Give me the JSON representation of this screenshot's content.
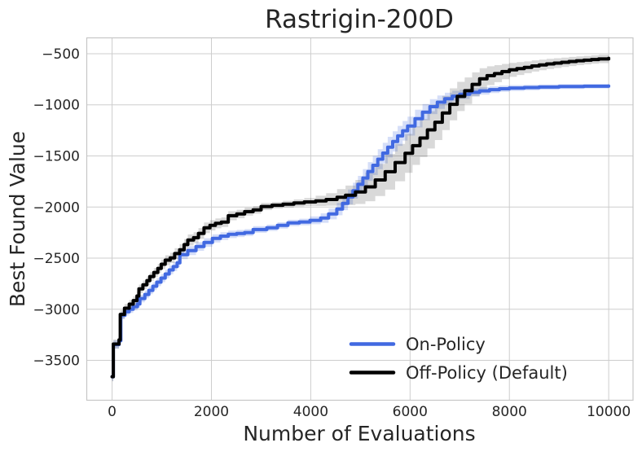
{
  "chart_data": {
    "type": "line",
    "title": "Rastrigin-200D",
    "xlabel": "Number of Evaluations",
    "ylabel": "Best Found Value",
    "xlim": [
      -510,
      10490
    ],
    "ylim": [
      -3890,
      -345
    ],
    "grid": true,
    "legend_position": "lower right",
    "xticks": {
      "values": [
        0,
        2000,
        4000,
        6000,
        8000,
        10000
      ],
      "labels": [
        "0",
        "2000",
        "4000",
        "6000",
        "8000",
        "10000"
      ]
    },
    "yticks": {
      "values": [
        -500,
        -1000,
        -1500,
        -2000,
        -2500,
        -3000,
        -3500
      ],
      "labels": [
        "−500",
        "−1000",
        "−1500",
        "−2000",
        "−2500",
        "−3000",
        "−3500"
      ]
    },
    "series": [
      {
        "name": "On-Policy",
        "color": "#4169e1",
        "band_opacity": 0.22,
        "points": [
          [
            0,
            -3660
          ],
          [
            25,
            -3345
          ],
          [
            140,
            -3308
          ],
          [
            175,
            -3060
          ],
          [
            260,
            -3025
          ],
          [
            345,
            -3000
          ],
          [
            425,
            -2975
          ],
          [
            510,
            -2948
          ],
          [
            560,
            -2895
          ],
          [
            660,
            -2855
          ],
          [
            740,
            -2815
          ],
          [
            820,
            -2775
          ],
          [
            900,
            -2735
          ],
          [
            985,
            -2695
          ],
          [
            1070,
            -2655
          ],
          [
            1150,
            -2615
          ],
          [
            1230,
            -2583
          ],
          [
            1310,
            -2545
          ],
          [
            1365,
            -2466
          ],
          [
            1525,
            -2426
          ],
          [
            1690,
            -2386
          ],
          [
            1850,
            -2347
          ],
          [
            2020,
            -2307
          ],
          [
            2180,
            -2285
          ],
          [
            2340,
            -2267
          ],
          [
            2510,
            -2259
          ],
          [
            2670,
            -2250
          ],
          [
            2840,
            -2220
          ],
          [
            3115,
            -2203
          ],
          [
            3330,
            -2180
          ],
          [
            3540,
            -2156
          ],
          [
            3770,
            -2146
          ],
          [
            3985,
            -2130
          ],
          [
            4200,
            -2108
          ],
          [
            4360,
            -2068
          ],
          [
            4525,
            -2020
          ],
          [
            4640,
            -1964
          ],
          [
            4750,
            -1902
          ],
          [
            4850,
            -1840
          ],
          [
            4950,
            -1778
          ],
          [
            5050,
            -1716
          ],
          [
            5150,
            -1652
          ],
          [
            5250,
            -1592
          ],
          [
            5350,
            -1532
          ],
          [
            5450,
            -1472
          ],
          [
            5550,
            -1414
          ],
          [
            5650,
            -1358
          ],
          [
            5750,
            -1304
          ],
          [
            5850,
            -1254
          ],
          [
            5950,
            -1208
          ],
          [
            6100,
            -1135
          ],
          [
            6250,
            -1072
          ],
          [
            6400,
            -1018
          ],
          [
            6550,
            -974
          ],
          [
            6700,
            -940
          ],
          [
            6850,
            -915
          ],
          [
            7000,
            -897
          ],
          [
            7200,
            -878
          ],
          [
            7400,
            -864
          ],
          [
            7600,
            -852
          ],
          [
            7800,
            -843
          ],
          [
            8000,
            -836
          ],
          [
            8300,
            -831
          ],
          [
            8600,
            -826
          ],
          [
            9000,
            -821
          ],
          [
            9500,
            -818
          ],
          [
            10000,
            -816
          ]
        ],
        "band": [
          [
            0,
            40
          ],
          [
            300,
            35
          ],
          [
            800,
            38
          ],
          [
            1400,
            45
          ],
          [
            2000,
            40
          ],
          [
            2600,
            34
          ],
          [
            3200,
            30
          ],
          [
            3800,
            32
          ],
          [
            4300,
            50
          ],
          [
            4700,
            70
          ],
          [
            5100,
            90
          ],
          [
            5500,
            102
          ],
          [
            5900,
            95
          ],
          [
            6300,
            78
          ],
          [
            6700,
            58
          ],
          [
            7100,
            42
          ],
          [
            7500,
            34
          ],
          [
            7900,
            30
          ],
          [
            8300,
            27
          ],
          [
            8700,
            25
          ],
          [
            9100,
            23
          ],
          [
            9500,
            22
          ],
          [
            10000,
            21
          ]
        ]
      },
      {
        "name": "Off-Policy (Default)",
        "color": "#000000",
        "band_opacity": 0.15,
        "points": [
          [
            0,
            -3660
          ],
          [
            25,
            -3340
          ],
          [
            140,
            -3300
          ],
          [
            165,
            -3050
          ],
          [
            250,
            -2990
          ],
          [
            345,
            -2950
          ],
          [
            425,
            -2915
          ],
          [
            500,
            -2870
          ],
          [
            540,
            -2800
          ],
          [
            620,
            -2760
          ],
          [
            700,
            -2720
          ],
          [
            760,
            -2680
          ],
          [
            840,
            -2640
          ],
          [
            920,
            -2600
          ],
          [
            990,
            -2560
          ],
          [
            1070,
            -2520
          ],
          [
            1170,
            -2498
          ],
          [
            1260,
            -2455
          ],
          [
            1360,
            -2418
          ],
          [
            1450,
            -2368
          ],
          [
            1525,
            -2322
          ],
          [
            1640,
            -2300
          ],
          [
            1740,
            -2258
          ],
          [
            1850,
            -2203
          ],
          [
            1970,
            -2179
          ],
          [
            2080,
            -2160
          ],
          [
            2200,
            -2148
          ],
          [
            2340,
            -2085
          ],
          [
            2510,
            -2068
          ],
          [
            2670,
            -2045
          ],
          [
            2840,
            -2028
          ],
          [
            3000,
            -1995
          ],
          [
            3220,
            -1982
          ],
          [
            3440,
            -1972
          ],
          [
            3660,
            -1960
          ],
          [
            3870,
            -1950
          ],
          [
            4100,
            -1940
          ],
          [
            4310,
            -1926
          ],
          [
            4530,
            -1905
          ],
          [
            4700,
            -1885
          ],
          [
            4900,
            -1853
          ],
          [
            5100,
            -1803
          ],
          [
            5300,
            -1735
          ],
          [
            5500,
            -1655
          ],
          [
            5700,
            -1565
          ],
          [
            5900,
            -1475
          ],
          [
            6050,
            -1400
          ],
          [
            6200,
            -1325
          ],
          [
            6350,
            -1245
          ],
          [
            6500,
            -1170
          ],
          [
            6650,
            -1080
          ],
          [
            6800,
            -995
          ],
          [
            6950,
            -918
          ],
          [
            7100,
            -862
          ],
          [
            7250,
            -800
          ],
          [
            7400,
            -745
          ],
          [
            7550,
            -715
          ],
          [
            7700,
            -695
          ],
          [
            7850,
            -675
          ],
          [
            8000,
            -658
          ],
          [
            8150,
            -645
          ],
          [
            8300,
            -633
          ],
          [
            8450,
            -620
          ],
          [
            8600,
            -610
          ],
          [
            8750,
            -600
          ],
          [
            8900,
            -592
          ],
          [
            9050,
            -584
          ],
          [
            9200,
            -576
          ],
          [
            9350,
            -569
          ],
          [
            9500,
            -563
          ],
          [
            9650,
            -557
          ],
          [
            9800,
            -551
          ],
          [
            10000,
            -545
          ]
        ],
        "band": [
          [
            0,
            45
          ],
          [
            300,
            40
          ],
          [
            800,
            42
          ],
          [
            1400,
            55
          ],
          [
            2000,
            50
          ],
          [
            2600,
            40
          ],
          [
            3200,
            32
          ],
          [
            3800,
            35
          ],
          [
            4300,
            60
          ],
          [
            4700,
            95
          ],
          [
            5100,
            140
          ],
          [
            5500,
            175
          ],
          [
            5900,
            190
          ],
          [
            6300,
            185
          ],
          [
            6700,
            165
          ],
          [
            7100,
            130
          ],
          [
            7500,
            95
          ],
          [
            7900,
            72
          ],
          [
            8300,
            58
          ],
          [
            8700,
            50
          ],
          [
            9100,
            45
          ],
          [
            9500,
            42
          ],
          [
            10000,
            40
          ]
        ]
      }
    ]
  },
  "styles": {
    "background": "#ffffff",
    "grid_color": "#cdcdcd",
    "spine_color": "#c6c6c6",
    "text_color": "#262626",
    "line_width": 4
  }
}
